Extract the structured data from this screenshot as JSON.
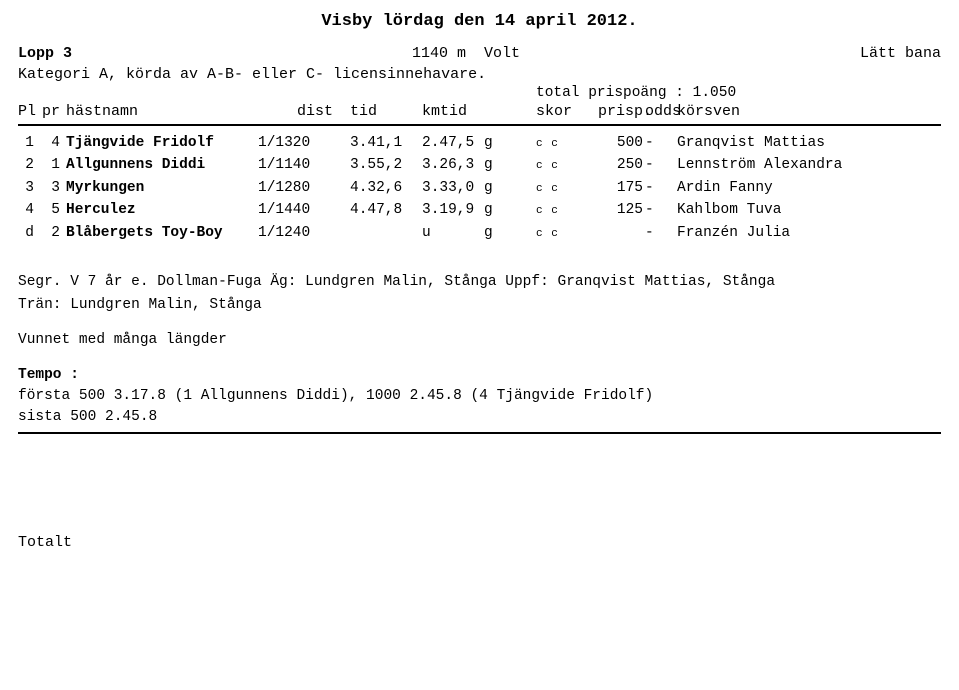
{
  "title": "Visby  lördag den 14 april 2012.",
  "race": {
    "lopp_label": "Lopp 3",
    "distance": "1140 m",
    "start_type": "Volt",
    "track": "Lätt bana",
    "category": "Kategori A, körda av A-B- eller C- licensinnehavare.",
    "total_prize_label": "total prispoäng :",
    "total_prize": "1.050"
  },
  "headers": {
    "pl": "Pl",
    "pr": "pr",
    "hastnamn": "hästnamn",
    "dist": "dist",
    "tid": "tid",
    "kmtid": "kmtid",
    "skor": "skor",
    "prisp": "prisp.",
    "odds": "odds",
    "korsven": "körsven"
  },
  "results": [
    {
      "pl": "1",
      "pr": "4",
      "name": "Tjängvide Fridolf",
      "dist": "1/1320",
      "tid": "3.41,1",
      "kmtid": "2.47,5",
      "g": "g",
      "skor": "c c",
      "prisp": "500",
      "odds": "-",
      "korsven": "Granqvist Mattias"
    },
    {
      "pl": "2",
      "pr": "1",
      "name": "Allgunnens Diddi",
      "dist": "1/1140",
      "tid": "3.55,2",
      "kmtid": "3.26,3",
      "g": "g",
      "skor": "c c",
      "prisp": "250",
      "odds": "-",
      "korsven": "Lennström Alexandra"
    },
    {
      "pl": "3",
      "pr": "3",
      "name": "Myrkungen",
      "dist": "1/1280",
      "tid": "4.32,6",
      "kmtid": "3.33,0",
      "g": "g",
      "skor": "c c",
      "prisp": "175",
      "odds": "-",
      "korsven": "Ardin Fanny"
    },
    {
      "pl": "4",
      "pr": "5",
      "name": "Herculez",
      "dist": "1/1440",
      "tid": "4.47,8",
      "kmtid": "3.19,9",
      "g": "g",
      "skor": "c c",
      "prisp": "125",
      "odds": "-",
      "korsven": "Kahlbom Tuva"
    },
    {
      "pl": "d",
      "pr": "2",
      "name": "Blåbergets Toy-Boy",
      "dist": "1/1240",
      "tid": "",
      "kmtid": "u",
      "g": "g",
      "skor": "c c",
      "prisp": "",
      "odds": "-",
      "korsven": "Franzén Julia"
    }
  ],
  "footer": {
    "segr_line1": "Segr. V 7 år e. Dollman-Fuga Äg: Lundgren Malin, Stånga Uppf: Granqvist Mattias, Stånga",
    "segr_line2": "Trän: Lundgren Malin, Stånga",
    "vunnet": "Vunnet med många längder",
    "tempo_label": "Tempo :",
    "tempo_line1": "första 500 3.17.8 (1 Allgunnens Diddi), 1000 2.45.8 (4 Tjängvide Fridolf)",
    "tempo_line2": "sista 500 2.45.8",
    "totalt": "Totalt"
  }
}
